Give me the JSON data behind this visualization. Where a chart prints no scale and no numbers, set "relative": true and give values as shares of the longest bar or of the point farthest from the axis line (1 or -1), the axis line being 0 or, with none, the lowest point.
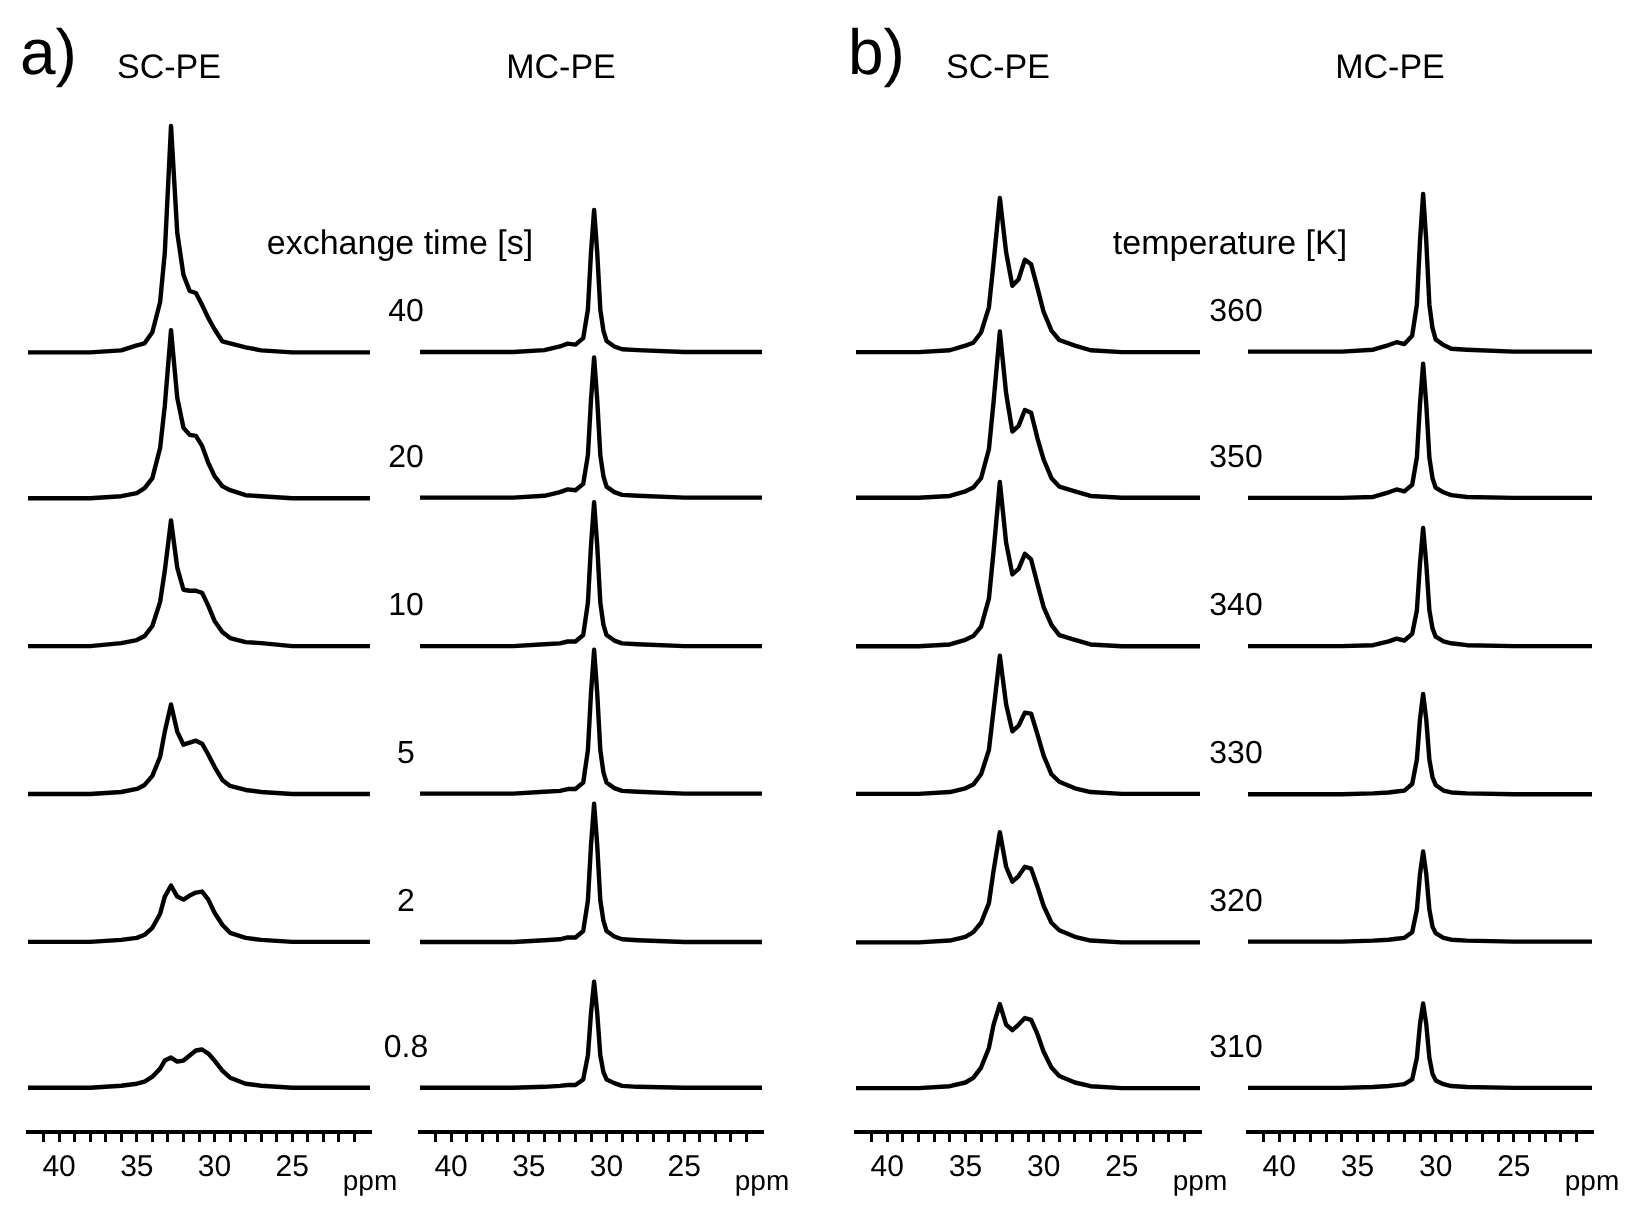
{
  "chart_data": [
    {
      "type": "line",
      "relative": true,
      "title": "SC-PE",
      "annotations": [
        "a)",
        "exchange time [s]"
      ],
      "xlabel": "ppm",
      "xlim": [
        42,
        20
      ],
      "xticks": [
        {
          "value": 41,
          "label": null
        },
        40,
        {
          "value": 39,
          "label": null
        },
        {
          "value": 38,
          "label": null
        },
        {
          "value": 37,
          "label": null
        },
        {
          "value": 36,
          "label": null
        },
        35,
        {
          "value": 34,
          "label": null
        },
        {
          "value": 33,
          "label": null
        },
        {
          "value": 32,
          "label": null
        },
        {
          "value": 31,
          "label": null
        },
        30,
        {
          "value": 29,
          "label": null
        },
        {
          "value": 28,
          "label": null
        },
        {
          "value": 27,
          "label": null
        },
        {
          "value": 26,
          "label": null
        },
        25,
        {
          "value": 24,
          "label": null
        },
        {
          "value": 23,
          "label": null
        },
        {
          "value": 22,
          "label": null
        },
        {
          "value": 21,
          "label": null
        }
      ],
      "x": [
        42,
        38,
        36,
        35,
        34.5,
        34,
        33.5,
        33.2,
        32.8,
        32.4,
        32,
        31.6,
        31.2,
        30.8,
        30.4,
        30,
        29.5,
        29,
        28,
        27,
        25,
        22,
        20
      ],
      "series": [
        {
          "name": "40",
          "color": "#000000",
          "values": [
            0.775,
            0.775,
            0.777,
            0.782,
            0.784,
            0.795,
            0.825,
            0.874,
            1,
            0.894,
            0.852,
            0.836,
            0.834,
            0.822,
            0.809,
            0.798,
            0.786,
            0.784,
            0.78,
            0.777,
            0.775,
            0.775,
            0.775
          ]
        },
        {
          "name": "20",
          "color": "#000000",
          "values": [
            0.63,
            0.63,
            0.632,
            0.635,
            0.64,
            0.65,
            0.68,
            0.722,
            0.797,
            0.73,
            0.7,
            0.693,
            0.692,
            0.682,
            0.665,
            0.652,
            0.642,
            0.638,
            0.633,
            0.632,
            0.63,
            0.63,
            0.63
          ]
        },
        {
          "name": "10",
          "color": "#000000",
          "values": [
            0.483,
            0.483,
            0.486,
            0.489,
            0.493,
            0.503,
            0.527,
            0.558,
            0.608,
            0.561,
            0.539,
            0.538,
            0.538,
            0.536,
            0.523,
            0.508,
            0.497,
            0.491,
            0.487,
            0.486,
            0.483,
            0.483,
            0.483
          ]
        },
        {
          "name": "5",
          "color": "#000000",
          "values": [
            0.336,
            0.336,
            0.338,
            0.341,
            0.345,
            0.354,
            0.373,
            0.398,
            0.425,
            0.398,
            0.385,
            0.387,
            0.389,
            0.386,
            0.375,
            0.363,
            0.35,
            0.344,
            0.34,
            0.338,
            0.336,
            0.336,
            0.336
          ]
        },
        {
          "name": "2",
          "color": "#000000",
          "values": [
            0.189,
            0.189,
            0.191,
            0.193,
            0.196,
            0.203,
            0.217,
            0.234,
            0.245,
            0.234,
            0.231,
            0.235,
            0.238,
            0.239,
            0.231,
            0.218,
            0.206,
            0.198,
            0.193,
            0.191,
            0.189,
            0.189,
            0.189
          ]
        },
        {
          "name": "0.8",
          "color": "#000000",
          "values": [
            0.044,
            0.044,
            0.046,
            0.048,
            0.05,
            0.055,
            0.063,
            0.071,
            0.074,
            0.07,
            0.071,
            0.076,
            0.081,
            0.082,
            0.078,
            0.071,
            0.061,
            0.054,
            0.048,
            0.046,
            0.044,
            0.044,
            0.044
          ]
        }
      ]
    },
    {
      "type": "line",
      "relative": true,
      "title": "MC-PE",
      "xlabel": "ppm",
      "xlim": [
        42,
        20
      ],
      "xticks": [
        {
          "value": 41,
          "label": null
        },
        40,
        {
          "value": 39,
          "label": null
        },
        {
          "value": 38,
          "label": null
        },
        {
          "value": 37,
          "label": null
        },
        {
          "value": 36,
          "label": null
        },
        35,
        {
          "value": 34,
          "label": null
        },
        {
          "value": 33,
          "label": null
        },
        {
          "value": 32,
          "label": null
        },
        {
          "value": 31,
          "label": null
        },
        30,
        {
          "value": 29,
          "label": null
        },
        {
          "value": 28,
          "label": null
        },
        {
          "value": 27,
          "label": null
        },
        {
          "value": 26,
          "label": null
        },
        25,
        {
          "value": 24,
          "label": null
        },
        {
          "value": 23,
          "label": null
        },
        {
          "value": 22,
          "label": null
        },
        {
          "value": 21,
          "label": null
        }
      ],
      "x": [
        42,
        36,
        34,
        33,
        32.5,
        32,
        31.5,
        31.2,
        31,
        30.8,
        30.6,
        30.4,
        30.2,
        30,
        29.5,
        29,
        28,
        25,
        20
      ],
      "series": [
        {
          "color": "#000000",
          "values": [
            0.846,
            0.846,
            0.848,
            0.852,
            0.855,
            0.854,
            0.861,
            0.892,
            0.954,
            1,
            0.954,
            0.892,
            0.869,
            0.858,
            0.852,
            0.849,
            0.848,
            0.846,
            0.846
          ]
        },
        {
          "color": "#000000",
          "values": [
            0.688,
            0.688,
            0.69,
            0.694,
            0.697,
            0.696,
            0.703,
            0.734,
            0.794,
            0.84,
            0.794,
            0.734,
            0.711,
            0.7,
            0.694,
            0.691,
            0.69,
            0.688,
            0.688
          ]
        },
        {
          "color": "#000000",
          "values": [
            0.527,
            0.527,
            0.529,
            0.53,
            0.532,
            0.532,
            0.539,
            0.574,
            0.636,
            0.683,
            0.636,
            0.574,
            0.55,
            0.539,
            0.533,
            0.53,
            0.529,
            0.527,
            0.527
          ]
        },
        {
          "color": "#000000",
          "values": [
            0.367,
            0.367,
            0.369,
            0.37,
            0.372,
            0.372,
            0.379,
            0.414,
            0.476,
            0.523,
            0.476,
            0.414,
            0.39,
            0.379,
            0.373,
            0.37,
            0.369,
            0.367,
            0.367
          ]
        },
        {
          "color": "#000000",
          "values": [
            0.206,
            0.206,
            0.208,
            0.209,
            0.211,
            0.211,
            0.218,
            0.251,
            0.311,
            0.356,
            0.311,
            0.251,
            0.229,
            0.218,
            0.212,
            0.209,
            0.208,
            0.206,
            0.206
          ]
        },
        {
          "color": "#000000",
          "values": [
            0.048,
            0.048,
            0.049,
            0.05,
            0.051,
            0.051,
            0.057,
            0.083,
            0.129,
            0.163,
            0.129,
            0.083,
            0.065,
            0.057,
            0.053,
            0.05,
            0.049,
            0.048,
            0.048
          ]
        }
      ]
    },
    {
      "type": "line",
      "relative": true,
      "title": "SC-PE",
      "annotations": [
        "b)",
        "temperature [K]"
      ],
      "xlabel": "ppm",
      "xlim": [
        42,
        20
      ],
      "xticks": [
        {
          "value": 41,
          "label": null
        },
        40,
        {
          "value": 39,
          "label": null
        },
        {
          "value": 38,
          "label": null
        },
        {
          "value": 37,
          "label": null
        },
        {
          "value": 36,
          "label": null
        },
        35,
        {
          "value": 34,
          "label": null
        },
        {
          "value": 33,
          "label": null
        },
        {
          "value": 32,
          "label": null
        },
        {
          "value": 31,
          "label": null
        },
        30,
        {
          "value": 29,
          "label": null
        },
        {
          "value": 28,
          "label": null
        },
        {
          "value": 27,
          "label": null
        },
        {
          "value": 26,
          "label": null
        },
        25,
        {
          "value": 24,
          "label": null
        },
        {
          "value": 23,
          "label": null
        },
        {
          "value": 22,
          "label": null
        },
        {
          "value": 21,
          "label": null
        }
      ],
      "x": [
        42,
        38,
        36,
        35,
        34.5,
        34,
        33.5,
        33.2,
        32.8,
        32.4,
        32,
        31.6,
        31.2,
        30.8,
        30.4,
        30,
        29.5,
        29,
        28,
        27,
        25,
        22,
        20
      ],
      "series": [
        {
          "name": "360",
          "color": "#000000",
          "values": [
            0.835,
            0.835,
            0.837,
            0.842,
            0.845,
            0.856,
            0.883,
            0.931,
            1,
            0.942,
            0.906,
            0.913,
            0.934,
            0.929,
            0.904,
            0.878,
            0.858,
            0.848,
            0.842,
            0.837,
            0.835,
            0.835,
            0.835
          ]
        },
        {
          "name": "350",
          "color": "#000000",
          "values": [
            0.679,
            0.679,
            0.681,
            0.686,
            0.69,
            0.7,
            0.731,
            0.782,
            0.857,
            0.791,
            0.75,
            0.756,
            0.773,
            0.77,
            0.743,
            0.72,
            0.7,
            0.691,
            0.686,
            0.681,
            0.679,
            0.679,
            0.679
          ]
        },
        {
          "name": "340",
          "color": "#000000",
          "values": [
            0.52,
            0.52,
            0.522,
            0.527,
            0.531,
            0.541,
            0.571,
            0.622,
            0.696,
            0.631,
            0.597,
            0.603,
            0.619,
            0.613,
            0.587,
            0.562,
            0.543,
            0.532,
            0.527,
            0.522,
            0.52,
            0.52,
            0.52
          ]
        },
        {
          "name": "330",
          "color": "#000000",
          "values": [
            0.362,
            0.362,
            0.364,
            0.368,
            0.372,
            0.383,
            0.409,
            0.452,
            0.51,
            0.458,
            0.429,
            0.435,
            0.449,
            0.448,
            0.426,
            0.403,
            0.383,
            0.375,
            0.368,
            0.364,
            0.362,
            0.362,
            0.362
          ]
        },
        {
          "name": "320",
          "color": "#000000",
          "values": [
            0.203,
            0.203,
            0.205,
            0.209,
            0.214,
            0.224,
            0.245,
            0.28,
            0.321,
            0.284,
            0.268,
            0.274,
            0.284,
            0.282,
            0.263,
            0.242,
            0.224,
            0.216,
            0.209,
            0.205,
            0.203,
            0.203,
            0.203
          ]
        },
        {
          "name": "310",
          "color": "#000000",
          "values": [
            0.047,
            0.047,
            0.049,
            0.053,
            0.058,
            0.069,
            0.09,
            0.115,
            0.137,
            0.115,
            0.109,
            0.115,
            0.122,
            0.12,
            0.105,
            0.086,
            0.069,
            0.06,
            0.053,
            0.049,
            0.047,
            0.047,
            0.047
          ]
        }
      ]
    },
    {
      "type": "line",
      "relative": true,
      "title": "MC-PE",
      "xlabel": "ppm",
      "xlim": [
        42,
        20
      ],
      "xticks": [
        {
          "value": 41,
          "label": null
        },
        40,
        {
          "value": 39,
          "label": null
        },
        {
          "value": 38,
          "label": null
        },
        {
          "value": 37,
          "label": null
        },
        {
          "value": 36,
          "label": null
        },
        35,
        {
          "value": 34,
          "label": null
        },
        {
          "value": 33,
          "label": null
        },
        {
          "value": 32,
          "label": null
        },
        {
          "value": 31,
          "label": null
        },
        30,
        {
          "value": 29,
          "label": null
        },
        {
          "value": 28,
          "label": null
        },
        {
          "value": 27,
          "label": null
        },
        {
          "value": 26,
          "label": null
        },
        25,
        {
          "value": 24,
          "label": null
        },
        {
          "value": 23,
          "label": null
        },
        {
          "value": 22,
          "label": null
        },
        {
          "value": 21,
          "label": null
        }
      ],
      "x": [
        42,
        36,
        34,
        33,
        32.5,
        32,
        31.5,
        31.2,
        31,
        30.8,
        30.6,
        30.4,
        30.2,
        30,
        29.5,
        29,
        28,
        25,
        20
      ],
      "series": [
        {
          "color": "#000000",
          "values": [
            0.832,
            0.832,
            0.834,
            0.839,
            0.842,
            0.84,
            0.849,
            0.882,
            0.95,
            1,
            0.95,
            0.882,
            0.857,
            0.845,
            0.839,
            0.835,
            0.834,
            0.832,
            0.832
          ]
        },
        {
          "color": "#000000",
          "values": [
            0.676,
            0.676,
            0.677,
            0.682,
            0.685,
            0.683,
            0.69,
            0.719,
            0.776,
            0.819,
            0.776,
            0.719,
            0.697,
            0.687,
            0.682,
            0.679,
            0.677,
            0.676,
            0.676
          ]
        },
        {
          "color": "#000000",
          "values": [
            0.518,
            0.518,
            0.519,
            0.523,
            0.526,
            0.524,
            0.531,
            0.556,
            0.606,
            0.644,
            0.606,
            0.556,
            0.537,
            0.528,
            0.523,
            0.521,
            0.519,
            0.518,
            0.518
          ]
        },
        {
          "color": "#000000",
          "values": [
            0.36,
            0.36,
            0.361,
            0.362,
            0.363,
            0.364,
            0.371,
            0.397,
            0.44,
            0.467,
            0.44,
            0.397,
            0.378,
            0.37,
            0.364,
            0.362,
            0.361,
            0.36,
            0.36
          ]
        },
        {
          "color": "#000000",
          "values": [
            0.203,
            0.203,
            0.204,
            0.205,
            0.206,
            0.207,
            0.213,
            0.237,
            0.275,
            0.299,
            0.275,
            0.237,
            0.219,
            0.212,
            0.207,
            0.205,
            0.204,
            0.203,
            0.203
          ]
        },
        {
          "color": "#000000",
          "values": [
            0.047,
            0.047,
            0.048,
            0.049,
            0.05,
            0.051,
            0.056,
            0.079,
            0.115,
            0.137,
            0.115,
            0.079,
            0.062,
            0.055,
            0.051,
            0.049,
            0.048,
            0.047,
            0.047
          ]
        }
      ]
    }
  ]
}
